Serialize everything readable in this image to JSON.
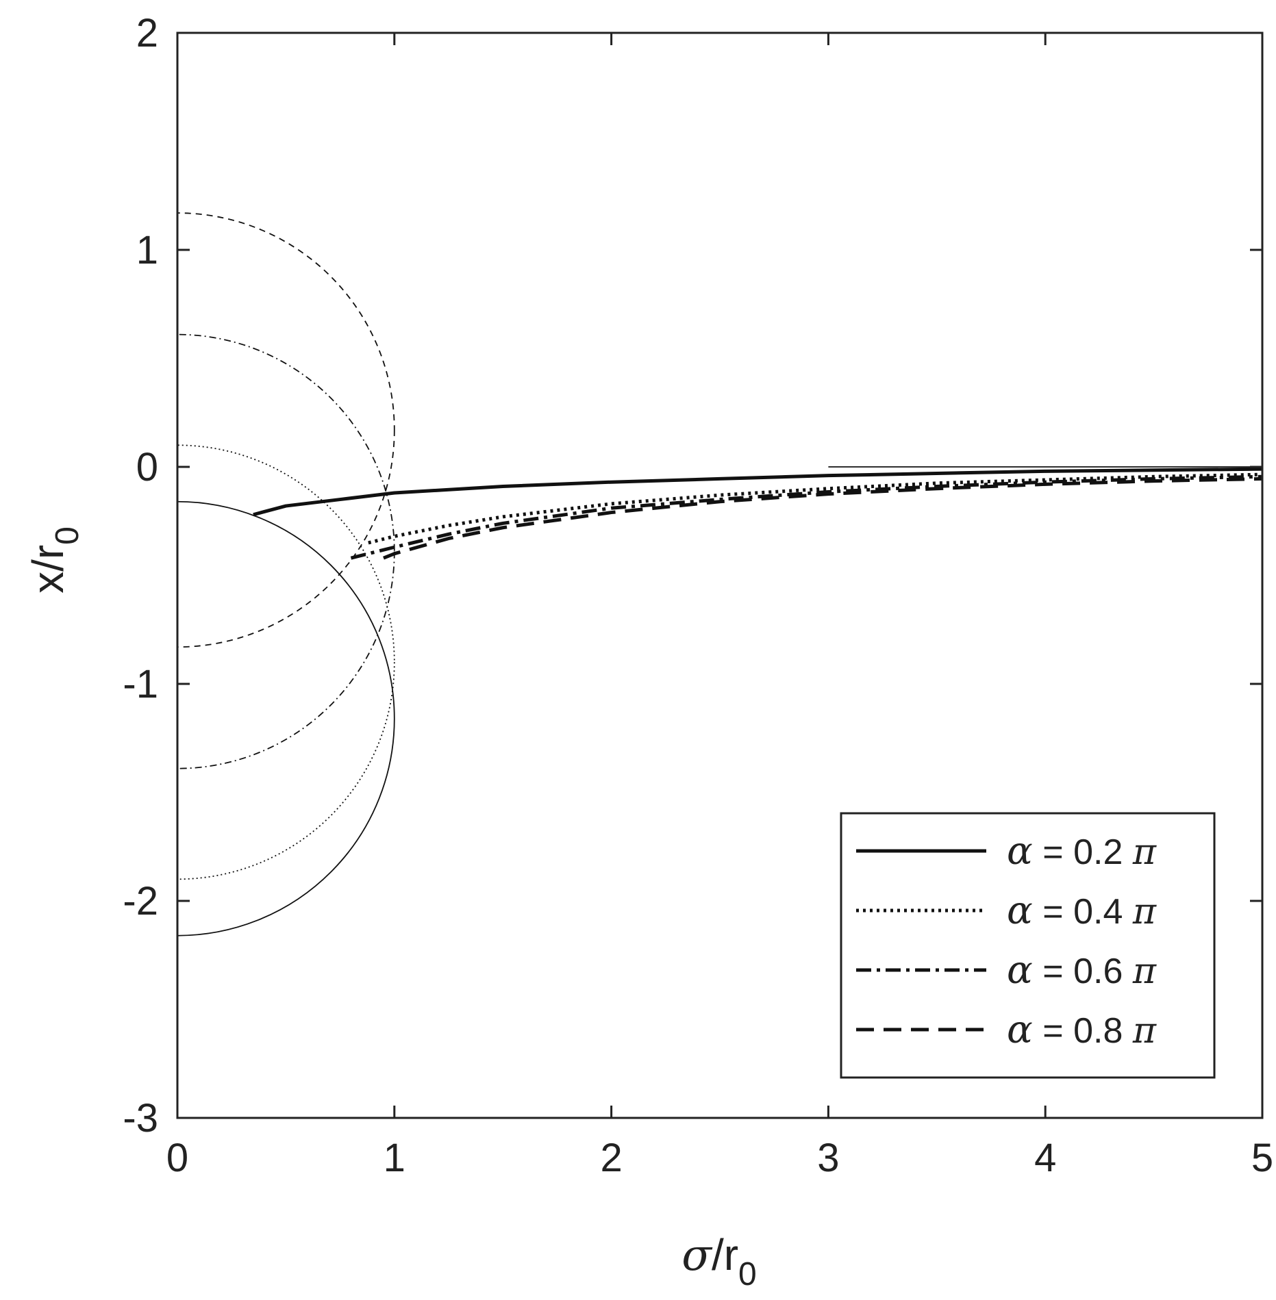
{
  "chart_data": {
    "type": "line",
    "title": "",
    "xlabel": {
      "symbol": "σ",
      "main": "/r",
      "sub": "0"
    },
    "ylabel": {
      "main": "x/r",
      "sub": "0"
    },
    "xlim": [
      0,
      5
    ],
    "ylim": [
      -3,
      2
    ],
    "xticks": [
      0,
      1,
      2,
      3,
      4,
      5
    ],
    "yticks": [
      -3,
      -2,
      -1,
      0,
      1,
      2
    ],
    "xtick_labels": [
      "0",
      "1",
      "2",
      "3",
      "4",
      "5"
    ],
    "ytick_labels": [
      "-3",
      "-2",
      "-1",
      "0",
      "1",
      "2"
    ],
    "grid": false,
    "box": true,
    "legend": {
      "placement": "bottom-right",
      "entries": [
        {
          "symbol": "α",
          "text": " = 0.2 ",
          "suffix": "π"
        },
        {
          "symbol": "α",
          "text": " = 0.4 ",
          "suffix": "π"
        },
        {
          "symbol": "α",
          "text": " = 0.6 ",
          "suffix": "π"
        },
        {
          "symbol": "α",
          "text": " = 0.8 ",
          "suffix": "π"
        }
      ]
    },
    "series": [
      {
        "name": "α = 0.2 π",
        "style": "solid",
        "x": [
          0.35,
          0.5,
          0.75,
          1.0,
          1.5,
          2.0,
          2.5,
          3.0,
          3.5,
          4.0,
          4.5,
          5.0
        ],
        "y": [
          -0.22,
          -0.18,
          -0.15,
          -0.12,
          -0.09,
          -0.07,
          -0.055,
          -0.04,
          -0.03,
          -0.02,
          -0.015,
          -0.01
        ]
      },
      {
        "name": "α = 0.4 π",
        "style": "dotted",
        "x": [
          0.88,
          1.0,
          1.25,
          1.5,
          2.0,
          2.5,
          3.0,
          3.5,
          4.0,
          4.5,
          5.0
        ],
        "y": [
          -0.35,
          -0.32,
          -0.27,
          -0.23,
          -0.17,
          -0.13,
          -0.1,
          -0.075,
          -0.06,
          -0.045,
          -0.035
        ]
      },
      {
        "name": "α = 0.6 π",
        "style": "dashdot",
        "x": [
          0.8,
          1.0,
          1.25,
          1.5,
          2.0,
          2.5,
          3.0,
          3.5,
          4.0,
          4.5,
          5.0
        ],
        "y": [
          -0.42,
          -0.37,
          -0.31,
          -0.26,
          -0.19,
          -0.15,
          -0.115,
          -0.09,
          -0.07,
          -0.055,
          -0.045
        ]
      },
      {
        "name": "α = 0.8 π",
        "style": "dashed",
        "x": [
          0.95,
          1.0,
          1.25,
          1.5,
          2.0,
          2.5,
          3.0,
          3.5,
          4.0,
          4.5,
          5.0
        ],
        "y": [
          -0.42,
          -0.4,
          -0.33,
          -0.28,
          -0.21,
          -0.16,
          -0.125,
          -0.1,
          -0.08,
          -0.065,
          -0.055
        ]
      }
    ],
    "circles": [
      {
        "style": "solid",
        "center_x": 0,
        "center_y": -1.16,
        "radius": 1.0
      },
      {
        "style": "dotted",
        "center_x": 0,
        "center_y": -0.9,
        "radius": 1.0
      },
      {
        "style": "dashdot",
        "center_x": 0,
        "center_y": -0.39,
        "radius": 1.0
      },
      {
        "style": "dashed",
        "center_x": 0,
        "center_y": 0.17,
        "radius": 1.0
      }
    ],
    "reference_line": {
      "style": "solid",
      "x": [
        3,
        5
      ],
      "y": [
        0,
        0
      ]
    }
  }
}
